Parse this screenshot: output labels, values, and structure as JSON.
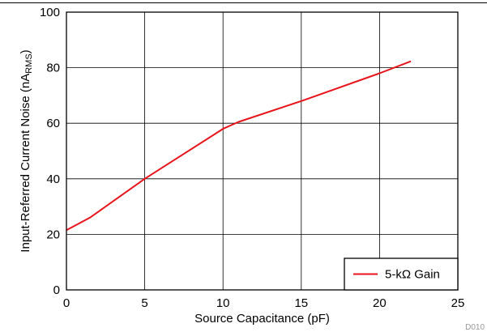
{
  "chart_data": {
    "type": "line",
    "xlabel": "Source Capacitance (pF)",
    "ylabel": {
      "prefix": "Input-Referred Current Noise (nA",
      "subscript": "RMS",
      "suffix": ")"
    },
    "xlim": [
      0,
      25
    ],
    "ylim": [
      0,
      100
    ],
    "xticks": [
      0,
      5,
      10,
      15,
      20,
      25
    ],
    "yticks": [
      0,
      20,
      40,
      60,
      80,
      100
    ],
    "grid": true,
    "legend_position": "bottom-right",
    "series": [
      {
        "name": "5-kΩ Gain",
        "color": "#e8141c",
        "x": [
          0,
          1.5,
          5,
          10,
          11,
          15,
          20,
          22
        ],
        "y": [
          21.5,
          26,
          40,
          58,
          60.5,
          68,
          78,
          82.3
        ]
      }
    ],
    "figure_code": "D010"
  }
}
